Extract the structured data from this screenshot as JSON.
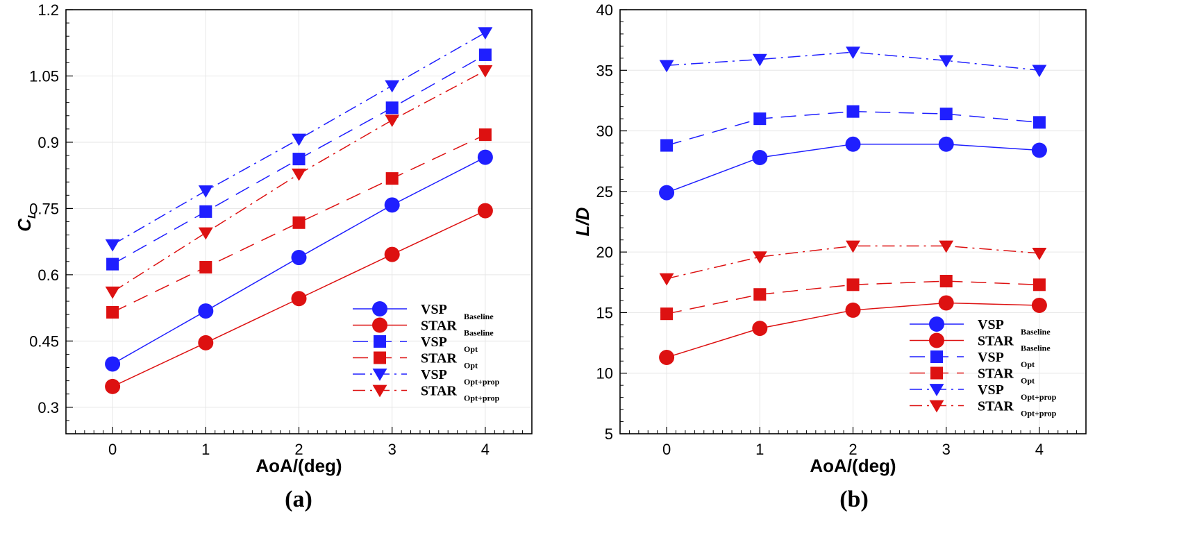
{
  "colors": {
    "blue": "#1f1fff",
    "red": "#dd1111",
    "axis": "#000000",
    "grid": "#e6e6e6"
  },
  "legend_entries": [
    {
      "name": "VSP",
      "sub": "Baseline",
      "color": "blue",
      "dash": "solid",
      "marker": "circle"
    },
    {
      "name": "STAR",
      "sub": "Baseline",
      "color": "red",
      "dash": "solid",
      "marker": "circle"
    },
    {
      "name": "VSP",
      "sub": "Opt",
      "color": "blue",
      "dash": "dash",
      "marker": "square"
    },
    {
      "name": "STAR",
      "sub": "Opt",
      "color": "red",
      "dash": "dash",
      "marker": "square"
    },
    {
      "name": "VSP",
      "sub": "Opt+prop",
      "color": "blue",
      "dash": "dashdot",
      "marker": "triangle-down"
    },
    {
      "name": "STAR",
      "sub": "Opt+prop",
      "color": "red",
      "dash": "dashdot",
      "marker": "triangle-down"
    }
  ],
  "chart_data": [
    {
      "type": "line",
      "panel_label": "(a)",
      "title": "",
      "xlabel": "AoA/(deg)",
      "ylabel": "C",
      "ylabel_sub": "L",
      "xlim": [
        -0.5,
        4.5
      ],
      "ylim": [
        0.24,
        1.2
      ],
      "x": [
        0,
        1,
        2,
        3,
        4
      ],
      "xticks": [
        0,
        1,
        2,
        3,
        4
      ],
      "xtick_labels": [
        "0",
        "1",
        "2",
        "3",
        "4"
      ],
      "yticks": [
        0.3,
        0.45,
        0.6,
        0.75,
        0.9,
        1.05,
        1.2
      ],
      "ytick_labels": [
        "0.3",
        "0.45",
        "0.6",
        "0.75",
        "0.9",
        "1.05",
        "1.2"
      ],
      "legend_position": "bottom-right",
      "series": [
        {
          "name": "VSP Baseline",
          "values": [
            0.398,
            0.518,
            0.639,
            0.758,
            0.866
          ]
        },
        {
          "name": "STAR Baseline",
          "values": [
            0.347,
            0.446,
            0.546,
            0.646,
            0.745
          ]
        },
        {
          "name": "VSP Opt",
          "values": [
            0.624,
            0.743,
            0.862,
            0.978,
            1.098
          ]
        },
        {
          "name": "STAR Opt",
          "values": [
            0.515,
            0.617,
            0.718,
            0.818,
            0.917
          ]
        },
        {
          "name": "VSP Opt+prop",
          "values": [
            0.668,
            0.79,
            0.907,
            1.028,
            1.148
          ]
        },
        {
          "name": "STAR Opt+prop",
          "values": [
            0.561,
            0.695,
            0.828,
            0.95,
            1.062
          ]
        }
      ]
    },
    {
      "type": "line",
      "panel_label": "(b)",
      "title": "",
      "xlabel": "AoA/(deg)",
      "ylabel": "L/D",
      "ylabel_sub": "",
      "xlim": [
        -0.5,
        4.5
      ],
      "ylim": [
        5,
        40
      ],
      "x": [
        0,
        1,
        2,
        3,
        4
      ],
      "xticks": [
        0,
        1,
        2,
        3,
        4
      ],
      "xtick_labels": [
        "0",
        "1",
        "2",
        "3",
        "4"
      ],
      "yticks": [
        5,
        10,
        15,
        20,
        25,
        30,
        35,
        40
      ],
      "ytick_labels": [
        "5",
        "10",
        "15",
        "20",
        "25",
        "30",
        "35",
        "40"
      ],
      "legend_position": "bottom-right",
      "series": [
        {
          "name": "VSP Baseline",
          "values": [
            24.9,
            27.8,
            28.9,
            28.9,
            28.4
          ]
        },
        {
          "name": "STAR Baseline",
          "values": [
            11.3,
            13.7,
            15.2,
            15.8,
            15.6
          ]
        },
        {
          "name": "VSP Opt",
          "values": [
            28.8,
            31.0,
            31.6,
            31.4,
            30.7
          ]
        },
        {
          "name": "STAR Opt",
          "values": [
            14.9,
            16.5,
            17.3,
            17.6,
            17.3
          ]
        },
        {
          "name": "VSP Opt+prop",
          "values": [
            35.4,
            35.9,
            36.5,
            35.8,
            35.0
          ]
        },
        {
          "name": "STAR Opt+prop",
          "values": [
            17.8,
            19.6,
            20.5,
            20.5,
            19.9
          ]
        }
      ]
    }
  ]
}
